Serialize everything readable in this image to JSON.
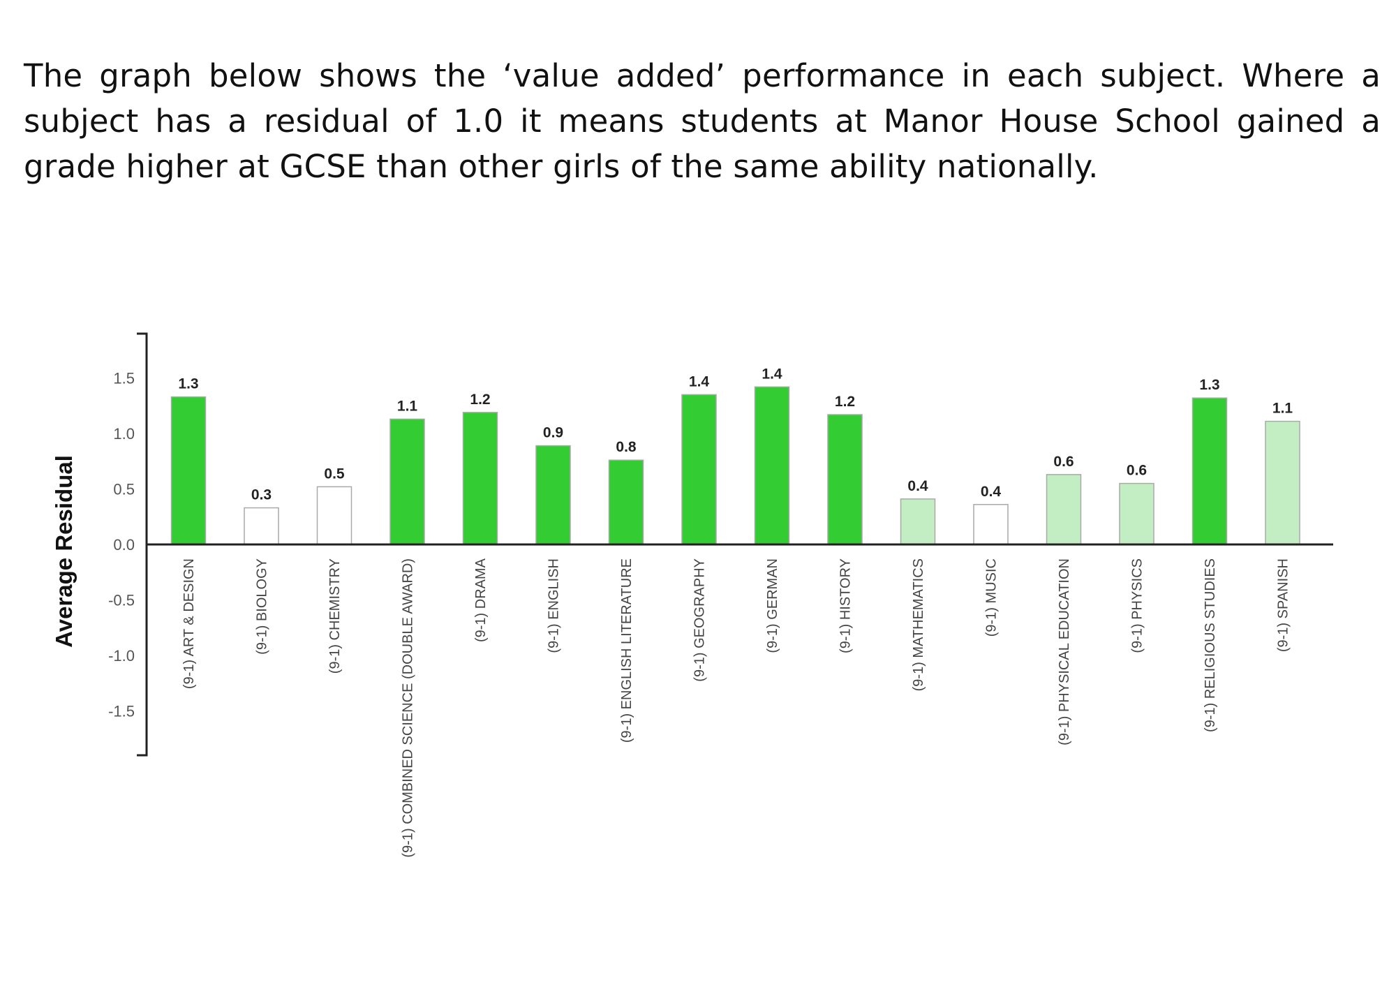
{
  "intro_text": "The graph below shows the ‘value added’ performance in each subject. Where a subject has a residual of 1.0 it means students at Manor House School gained a grade higher at GCSE than other girls of the same ability nationally.",
  "chart_data": {
    "type": "bar",
    "ylabel": "Average Residual",
    "ylim": [
      -1.9,
      1.9
    ],
    "yticks": [
      "1.5",
      "1.0",
      "0.5",
      "0.0",
      "-0.5",
      "-1.0",
      "-1.5"
    ],
    "ytick_values": [
      1.5,
      1.0,
      0.5,
      0.0,
      -0.5,
      -1.0,
      -1.5
    ],
    "categories": [
      "(9-1) ART & DESIGN",
      "(9-1) BIOLOGY",
      "(9-1) CHEMISTRY",
      "(9-1) COMBINED SCIENCE (DOUBLE AWARD)",
      "(9-1) DRAMA",
      "(9-1) ENGLISH",
      "(9-1) ENGLISH LITERATURE",
      "(9-1) GEOGRAPHY",
      "(9-1) GERMAN",
      "(9-1) HISTORY",
      "(9-1) MATHEMATICS",
      "(9-1) MUSIC",
      "(9-1) PHYSICAL EDUCATION",
      "(9-1) PHYSICS",
      "(9-1) RELIGIOUS STUDIES",
      "(9-1) SPANISH"
    ],
    "values": [
      1.33,
      0.33,
      0.52,
      1.13,
      1.19,
      0.89,
      0.76,
      1.35,
      1.42,
      1.17,
      0.41,
      0.36,
      0.63,
      0.55,
      1.32,
      1.11
    ],
    "labels": [
      "1.3",
      "0.3",
      "0.5",
      "1.1",
      "1.2",
      "0.9",
      "0.8",
      "1.4",
      "1.4",
      "1.2",
      "0.4",
      "0.4",
      "0.6",
      "0.6",
      "1.3",
      "1.1"
    ],
    "bar_fills": [
      "#33cc33",
      "#ffffff",
      "#ffffff",
      "#33cc33",
      "#33cc33",
      "#33cc33",
      "#33cc33",
      "#33cc33",
      "#33cc33",
      "#33cc33",
      "#c3eec3",
      "#ffffff",
      "#c3eec3",
      "#c3eec3",
      "#33cc33",
      "#c3eec3"
    ],
    "grid": false,
    "legend": "none"
  }
}
